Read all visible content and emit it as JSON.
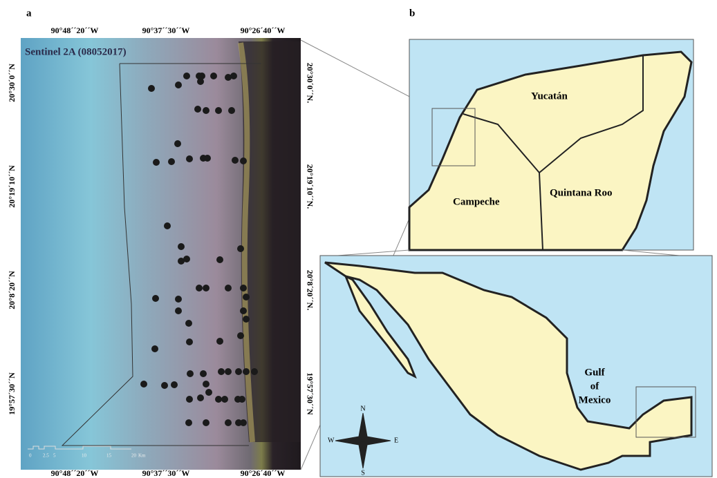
{
  "panels": [
    {
      "label": "a",
      "title": "Sentinel 2A (08052017)",
      "top_labels": [
        "90°48´´20´´W",
        "90°37´´30´´W",
        "90°26´40´´W"
      ],
      "bottom_labels": [
        "90°48´´20´´W",
        "90°37´´30´´W",
        "90°26´40´´W"
      ],
      "left_labels": [
        "20°30´0´´N",
        "20°19´10´´N",
        "20°8´20´´N",
        "19°57´30´´N"
      ],
      "right_labels": [
        "20°30´0´´N.",
        "20°19´10´´N.",
        "20°8´20´´N.",
        "19°57´30´´N"
      ],
      "scale_labels": [
        "0",
        "2.5",
        "5",
        "10",
        "15",
        "20",
        "Km"
      ]
    },
    {
      "label": "b",
      "state_labels": [
        "Yucatán",
        "Campeche",
        "Quintana Roo"
      ],
      "sea_label": [
        "Gulf",
        "of",
        "Mexico"
      ],
      "compass": [
        "N",
        "S",
        "E",
        "W"
      ]
    }
  ]
}
